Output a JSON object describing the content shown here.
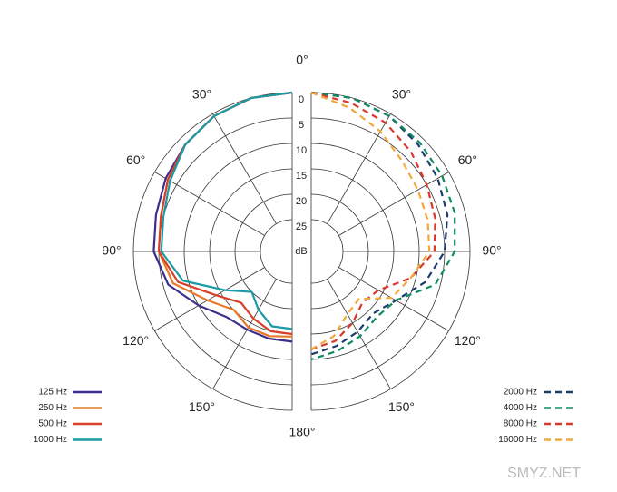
{
  "chart_data": {
    "type": "polar",
    "theta": [
      0,
      15,
      30,
      45,
      60,
      75,
      90,
      105,
      120,
      135,
      150,
      165,
      180
    ],
    "angle_ticks": [
      {
        "value": 0,
        "label": "0°"
      },
      {
        "value": 30,
        "label": "30°"
      },
      {
        "value": 60,
        "label": "60°"
      },
      {
        "value": 90,
        "label": "90°"
      },
      {
        "value": 120,
        "label": "120°"
      },
      {
        "value": 150,
        "label": "150°"
      },
      {
        "value": 180,
        "label": "180°"
      }
    ],
    "rlim": [
      0,
      25
    ],
    "rticks": [
      0,
      5,
      10,
      15,
      20,
      25
    ],
    "r_label": "dB",
    "series": [
      {
        "name": "125 Hz",
        "color": "#3b2e8c",
        "side": "left",
        "dashed": false,
        "values": [
          0,
          0,
          0.5,
          1.5,
          2.5,
          3.5,
          4,
          6,
          10,
          13,
          13.5,
          13.5,
          13.5
        ]
      },
      {
        "name": "250 Hz",
        "color": "#e8792a",
        "side": "left",
        "dashed": false,
        "values": [
          0,
          0,
          0.5,
          1.5,
          3,
          4.5,
          5,
          7,
          12,
          15,
          14,
          14,
          14.5
        ]
      },
      {
        "name": "500 Hz",
        "color": "#d8402a",
        "side": "left",
        "dashed": false,
        "values": [
          0,
          0,
          0.5,
          1.5,
          3,
          4.5,
          5,
          8,
          14,
          17,
          16,
          15,
          15
        ]
      },
      {
        "name": "1000 Hz",
        "color": "#1a9aa5",
        "side": "left",
        "dashed": false,
        "values": [
          0,
          0,
          0.5,
          1.5,
          3.5,
          5,
          5.5,
          9,
          16,
          20,
          18,
          16,
          16
        ]
      },
      {
        "name": "2000 Hz",
        "color": "#1b3a6e",
        "side": "right",
        "dashed": true,
        "values": [
          0,
          0,
          0.5,
          1.5,
          2.5,
          3.5,
          5,
          8,
          12,
          14,
          13,
          12,
          11
        ]
      },
      {
        "name": "4000 Hz",
        "color": "#108a60",
        "side": "right",
        "dashed": true,
        "values": [
          0,
          0,
          0.5,
          1,
          1.5,
          2,
          3,
          6,
          12,
          13,
          12,
          11,
          10
        ]
      },
      {
        "name": "8000 Hz",
        "color": "#d8382e",
        "side": "right",
        "dashed": true,
        "values": [
          0,
          1,
          2,
          3.5,
          5,
          6,
          7,
          11,
          16,
          17,
          15,
          13,
          12
        ]
      },
      {
        "name": "16000 Hz",
        "color": "#f0a83a",
        "side": "right",
        "dashed": true,
        "values": [
          0,
          2,
          4,
          6,
          7,
          7.5,
          8,
          11,
          13,
          18,
          17,
          14,
          12
        ]
      }
    ],
    "watermark": "SMYZ.NET"
  }
}
